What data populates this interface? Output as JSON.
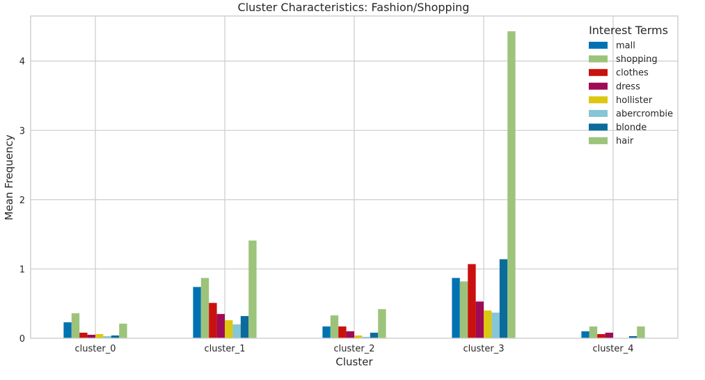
{
  "chart_data": {
    "type": "bar",
    "title": "Cluster Characteristics: Fashion/Shopping",
    "xlabel": "Cluster",
    "ylabel": "Mean Frequency",
    "ylim": [
      0,
      4.65
    ],
    "yticks": [
      0,
      1,
      2,
      3,
      4
    ],
    "grid": true,
    "legend": {
      "title": "Interest Terms",
      "placement": "top-right"
    },
    "categories": [
      "cluster_0",
      "cluster_1",
      "cluster_2",
      "cluster_3",
      "cluster_4"
    ],
    "series": [
      {
        "name": "mall",
        "color": "#0072b2",
        "values": [
          0.23,
          0.74,
          0.17,
          0.87,
          0.1
        ]
      },
      {
        "name": "shopping",
        "color": "#9dc37b",
        "values": [
          0.36,
          0.87,
          0.33,
          0.82,
          0.17
        ]
      },
      {
        "name": "clothes",
        "color": "#c9120e",
        "values": [
          0.08,
          0.51,
          0.17,
          1.07,
          0.06
        ]
      },
      {
        "name": "dress",
        "color": "#a00b57",
        "values": [
          0.05,
          0.35,
          0.1,
          0.53,
          0.08
        ]
      },
      {
        "name": "hollister",
        "color": "#dcc712",
        "values": [
          0.06,
          0.26,
          0.04,
          0.4,
          0.0
        ]
      },
      {
        "name": "abercrombie",
        "color": "#86c6d6",
        "values": [
          0.03,
          0.2,
          0.02,
          0.37,
          0.0
        ]
      },
      {
        "name": "blonde",
        "color": "#0b6b9b",
        "values": [
          0.04,
          0.32,
          0.08,
          1.14,
          0.03
        ]
      },
      {
        "name": "hair",
        "color": "#9cc47a",
        "values": [
          0.21,
          1.41,
          0.42,
          4.43,
          0.17
        ]
      }
    ]
  }
}
